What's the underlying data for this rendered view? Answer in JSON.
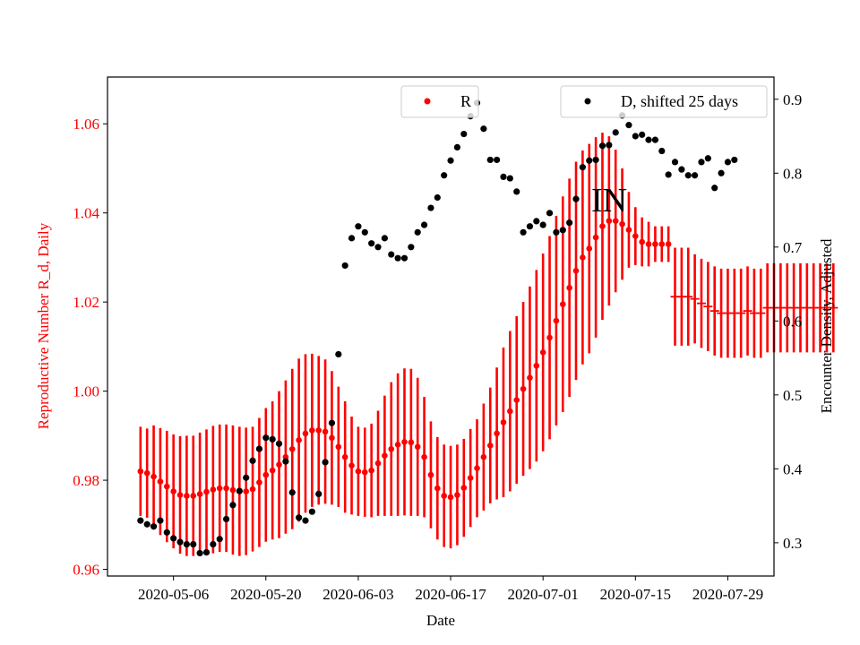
{
  "chart_data": {
    "type": "scatter",
    "xlabel": "Date",
    "ylabel_left": "Reproductive Number R_d, Daily",
    "ylabel_right": "Encounter Density, Adjusted",
    "annotation": "IN",
    "x_ticks": [
      "2020-05-06",
      "2020-05-20",
      "2020-06-03",
      "2020-06-17",
      "2020-07-01",
      "2020-07-15",
      "2020-07-29"
    ],
    "y_left_ticks": [
      "0.96",
      "0.98",
      "1.00",
      "1.02",
      "1.04",
      "1.06"
    ],
    "y_right_ticks": [
      "0.3",
      "0.4",
      "0.5",
      "0.6",
      "0.7",
      "0.8",
      "0.9"
    ],
    "y_left_lim": [
      0.9585,
      1.0705
    ],
    "y_right_lim": [
      0.255,
      0.93
    ],
    "x_start": "2020-04-26",
    "x_end": "2020-08-05",
    "legend_position": "top-right",
    "colors": {
      "r_series": "#ff0000",
      "d_series": "#000000",
      "left_axis": "#ff0000",
      "right_axis": "#000000"
    },
    "series": [
      {
        "name": "R",
        "axis": "left",
        "start_date": "2020-05-01",
        "y": [
          0.982,
          0.9816,
          0.9808,
          0.9797,
          0.9786,
          0.9775,
          0.9767,
          0.9765,
          0.9765,
          0.9769,
          0.9774,
          0.9779,
          0.9782,
          0.9782,
          0.9778,
          0.9775,
          0.9775,
          0.978,
          0.9795,
          0.9812,
          0.9822,
          0.9835,
          0.9852,
          0.987,
          0.989,
          0.9905,
          0.9912,
          0.9912,
          0.9909,
          0.9895,
          0.9875,
          0.9852,
          0.9833,
          0.982,
          0.9818,
          0.9822,
          0.9838,
          0.9855,
          0.987,
          0.988,
          0.9886,
          0.9885,
          0.9875,
          0.9852,
          0.9812,
          0.9782,
          0.9765,
          0.9762,
          0.9767,
          0.9783,
          0.9805,
          0.9827,
          0.9852,
          0.9878,
          0.9905,
          0.993,
          0.9955,
          0.998,
          1.0005,
          1.003,
          1.0057,
          1.0087,
          1.012,
          1.0158,
          1.0195,
          1.0232,
          1.027,
          1.03,
          1.032,
          1.0345,
          1.037,
          1.0382,
          1.0382,
          1.0375,
          1.0362,
          1.0348,
          1.0335,
          1.033,
          1.033,
          1.033,
          1.033
        ],
        "errors": [
          0.01,
          0.01,
          0.0115,
          0.012,
          0.0125,
          0.0128,
          0.0132,
          0.0135,
          0.0135,
          0.0138,
          0.014,
          0.0143,
          0.0143,
          0.0143,
          0.0145,
          0.0145,
          0.0143,
          0.014,
          0.0145,
          0.015,
          0.0155,
          0.0165,
          0.0172,
          0.018,
          0.0183,
          0.0178,
          0.0172,
          0.0167,
          0.0162,
          0.015,
          0.0135,
          0.0125,
          0.011,
          0.01,
          0.01,
          0.0105,
          0.0118,
          0.0135,
          0.015,
          0.016,
          0.0165,
          0.0165,
          0.0155,
          0.0135,
          0.012,
          0.0115,
          0.0115,
          0.0115,
          0.0113,
          0.011,
          0.011,
          0.011,
          0.012,
          0.013,
          0.0148,
          0.0168,
          0.018,
          0.0188,
          0.0195,
          0.0205,
          0.0215,
          0.0222,
          0.0228,
          0.0235,
          0.0242,
          0.0245,
          0.0245,
          0.024,
          0.0235,
          0.0225,
          0.021,
          0.019,
          0.016,
          0.0125,
          0.0085,
          0.0065,
          0.0055,
          0.005,
          0.004,
          0.004,
          0.004
        ]
      },
      {
        "name": "R",
        "axis": "left",
        "style": "hbar",
        "start_date": "2020-07-21",
        "y": [
          1.0212,
          1.0212,
          1.0212,
          1.0207,
          1.0197,
          1.019,
          1.018,
          1.0175,
          1.0175,
          1.0175,
          1.0175,
          1.018,
          1.0175,
          1.0175,
          1.0187,
          1.0187,
          1.0187,
          1.0187,
          1.0187,
          1.0187,
          1.0187,
          1.0187,
          1.0187,
          1.0187,
          1.0187
        ],
        "errors": [
          0.011,
          0.011,
          0.011,
          0.01,
          0.01,
          0.01,
          0.01,
          0.01,
          0.01,
          0.01,
          0.01,
          0.01,
          0.01,
          0.01,
          0.01,
          0.01,
          0.01,
          0.01,
          0.01,
          0.01,
          0.01,
          0.01,
          0.01,
          0.01,
          0.01
        ]
      },
      {
        "name": "D, shifted 25 days",
        "axis": "right",
        "dates": [
          "2020-05-01",
          "2020-05-02",
          "2020-05-03",
          "2020-05-04",
          "2020-05-05",
          "2020-05-06",
          "2020-05-07",
          "2020-05-08",
          "2020-05-09",
          "2020-05-10",
          "2020-05-11",
          "2020-05-12",
          "2020-05-13",
          "2020-05-14",
          "2020-05-15",
          "2020-05-16",
          "2020-05-17",
          "2020-05-18",
          "2020-05-19",
          "2020-05-20",
          "2020-05-21",
          "2020-05-22",
          "2020-05-23",
          "2020-05-24",
          "2020-05-25",
          "2020-05-26",
          "2020-05-27",
          "2020-05-28",
          "2020-05-29",
          "2020-05-30",
          "2020-05-31",
          "2020-06-01",
          "2020-06-02",
          "2020-06-03",
          "2020-06-04",
          "2020-06-05",
          "2020-06-06",
          "2020-06-07",
          "2020-06-08",
          "2020-06-09",
          "2020-06-10",
          "2020-06-11",
          "2020-06-12",
          "2020-06-13",
          "2020-06-14",
          "2020-06-15",
          "2020-06-16",
          "2020-06-17",
          "2020-06-18",
          "2020-06-19",
          "2020-06-20",
          "2020-06-21",
          "2020-06-22",
          "2020-06-23",
          "2020-06-24",
          "2020-06-25",
          "2020-06-26",
          "2020-06-27",
          "2020-06-28",
          "2020-06-29",
          "2020-06-30",
          "2020-07-01",
          "2020-07-02",
          "2020-07-03",
          "2020-07-04",
          "2020-07-05",
          "2020-07-06",
          "2020-07-07",
          "2020-07-08",
          "2020-07-09",
          "2020-07-10",
          "2020-07-11",
          "2020-07-12",
          "2020-07-13",
          "2020-07-14",
          "2020-07-15",
          "2020-07-16",
          "2020-07-17",
          "2020-07-18",
          "2020-07-19",
          "2020-07-20",
          "2020-07-21",
          "2020-07-22",
          "2020-07-23",
          "2020-07-24",
          "2020-07-25",
          "2020-07-26",
          "2020-07-27",
          "2020-07-28",
          "2020-07-29",
          "2020-07-30"
        ],
        "y": [
          0.33,
          0.325,
          0.322,
          0.33,
          0.314,
          0.306,
          0.301,
          0.298,
          0.298,
          0.286,
          0.287,
          0.298,
          0.305,
          0.332,
          0.351,
          0.37,
          0.388,
          0.411,
          0.427,
          0.442,
          0.44,
          0.434,
          0.41,
          0.368,
          0.334,
          0.33,
          0.342,
          0.366,
          0.409,
          0.462,
          0.555,
          0.675,
          0.712,
          0.728,
          0.72,
          0.705,
          0.7,
          0.712,
          0.69,
          0.685,
          0.685,
          0.7,
          0.72,
          0.73,
          0.753,
          0.767,
          0.797,
          0.817,
          0.835,
          0.853,
          0.877,
          0.895,
          0.86,
          0.818,
          0.818,
          0.795,
          0.793,
          0.775,
          0.72,
          0.728,
          0.735,
          0.73,
          0.746,
          0.72,
          0.723,
          0.733,
          0.765,
          0.808,
          0.817,
          0.818,
          0.837,
          0.838,
          0.855,
          0.878,
          0.865,
          0.85,
          0.852,
          0.845,
          0.845,
          0.83,
          0.798,
          0.815,
          0.805,
          0.797,
          0.797,
          0.815,
          0.82,
          0.78,
          0.8,
          0.815,
          0.818
        ]
      }
    ],
    "legend": {
      "r_label": "R",
      "d_label": "D, shifted 25 days"
    }
  }
}
